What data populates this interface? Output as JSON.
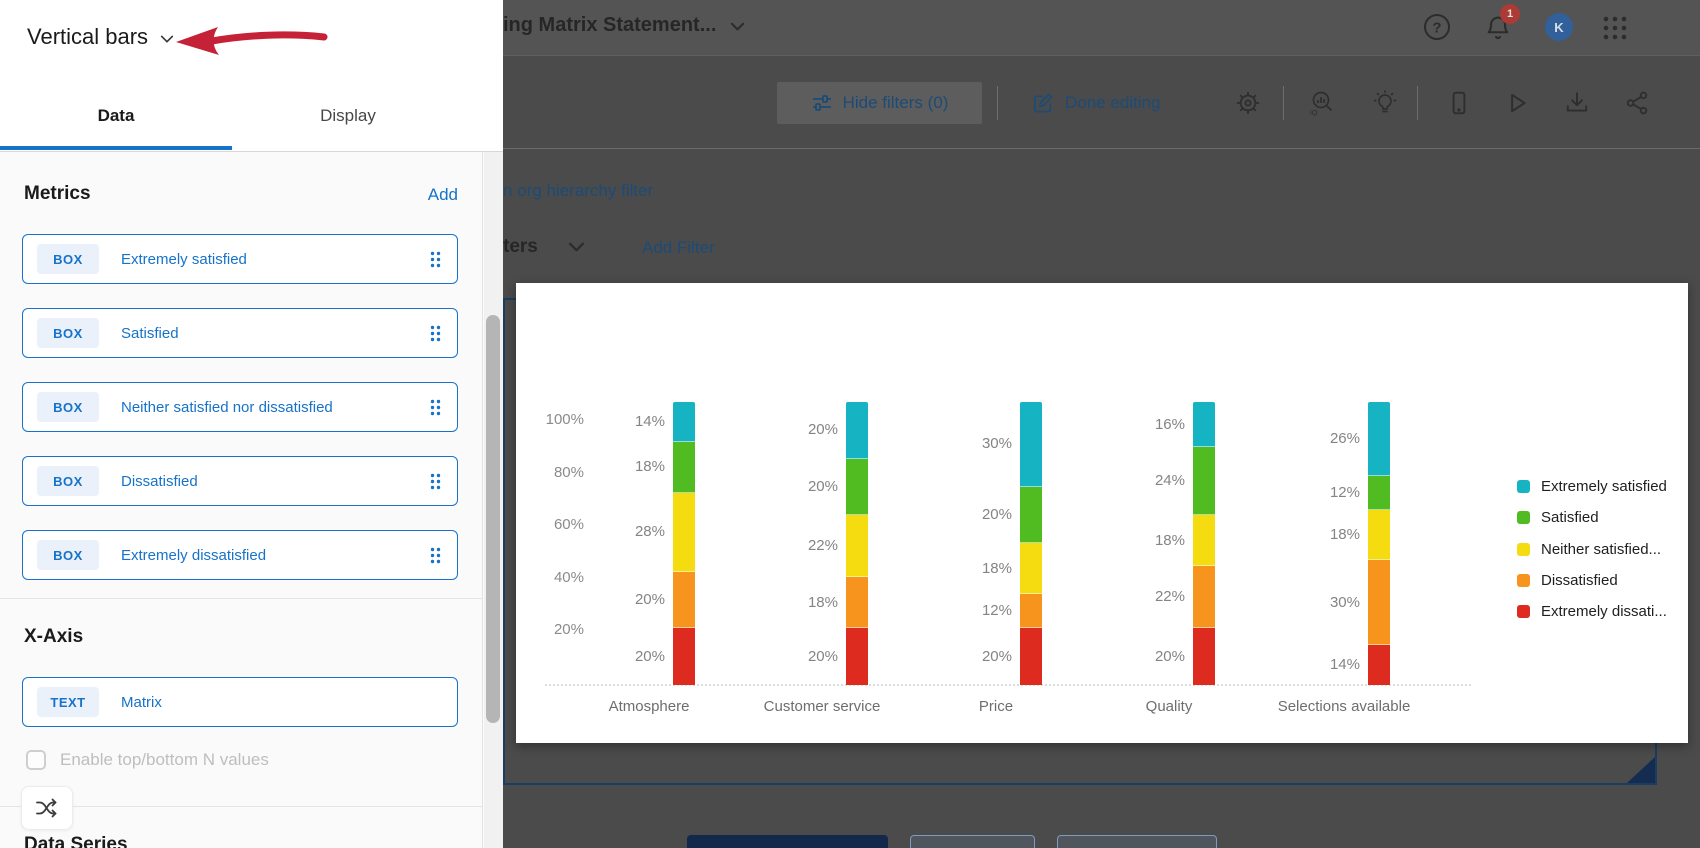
{
  "panel": {
    "title": "Vertical bars",
    "tabs": {
      "data": "Data",
      "display": "Display"
    },
    "metrics": {
      "heading": "Metrics",
      "add_label": "Add",
      "items": [
        {
          "badge": "BOX",
          "label": "Extremely satisfied"
        },
        {
          "badge": "BOX",
          "label": "Satisfied"
        },
        {
          "badge": "BOX",
          "label": "Neither satisfied nor dissatisfied"
        },
        {
          "badge": "BOX",
          "label": "Dissatisfied"
        },
        {
          "badge": "BOX",
          "label": "Extremely dissatisfied"
        }
      ]
    },
    "x_axis": {
      "heading": "X-Axis",
      "item": {
        "badge": "TEXT",
        "label": "Matrix"
      },
      "checkbox_label": "Enable top/bottom N values",
      "checkbox_checked": false
    },
    "data_series_heading": "Data Series"
  },
  "topbar": {
    "widget_title": "ing Matrix Statement...",
    "notification_count": "1",
    "avatar_initial": "K"
  },
  "toolbar": {
    "hide_filters_label": "Hide filters (0)",
    "done_editing_label": "Done editing"
  },
  "filter_bar": {
    "org_hierarchy_link": "n org hierarchy filter",
    "filters_label": "ters",
    "add_filter_label": "Add Filter"
  },
  "chart_data": {
    "type": "bar",
    "stacked": true,
    "categories": [
      "Atmosphere",
      "Customer service",
      "Price",
      "Quality",
      "Selections available"
    ],
    "series": [
      {
        "name": "Extremely satisfied",
        "color": "#16B3C3",
        "values": [
          14,
          20,
          30,
          16,
          26
        ]
      },
      {
        "name": "Satisfied",
        "color": "#51BC22",
        "values": [
          18,
          20,
          20,
          24,
          12
        ]
      },
      {
        "name": "Neither satisfied nor dissatisfied",
        "color": "#F4DC10",
        "values": [
          28,
          22,
          18,
          18,
          18
        ]
      },
      {
        "name": "Dissatisfied",
        "color": "#F7941E",
        "values": [
          20,
          18,
          12,
          22,
          30
        ]
      },
      {
        "name": "Extremely dissatisfied",
        "color": "#DD2B1F",
        "values": [
          20,
          20,
          20,
          20,
          14
        ]
      }
    ],
    "legend_labels": [
      "Extremely satisfied",
      "Satisfied",
      "Neither satisfied...",
      "Dissatisfied",
      "Extremely dissati..."
    ],
    "legend_position": "right",
    "y_ticks": [
      "100%",
      "80%",
      "60%",
      "40%",
      "20%"
    ],
    "ylim": [
      0,
      100
    ],
    "data_labels": true,
    "grid": false
  },
  "colors": {
    "accent_blue": "#1673C9",
    "dimmed_navy_link": "#1C4B77",
    "annotation_arrow_red": "#C52238",
    "notification_badge_red": "#AC3A35",
    "avatar_blue": "#31609B",
    "widget_outline_navy": "#1B3C63"
  }
}
